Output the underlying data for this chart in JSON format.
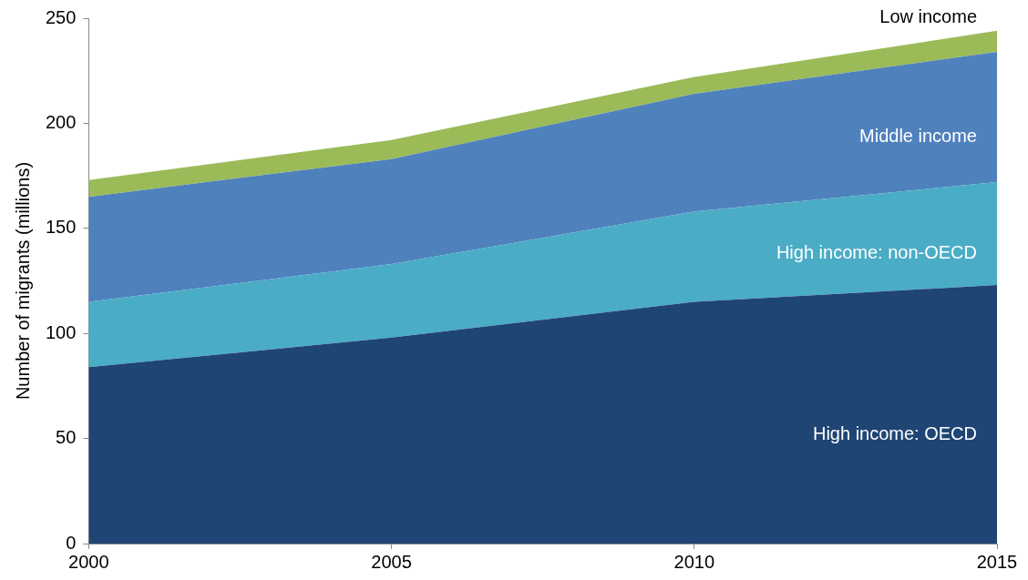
{
  "chart_data": {
    "type": "area",
    "stacked": true,
    "ylabel": "Number of migrants (millions)",
    "x": [
      2000,
      2005,
      2010,
      2015
    ],
    "series": [
      {
        "name": "High income: OECD",
        "color": "#1f4574",
        "values": [
          84,
          98,
          115,
          123
        ]
      },
      {
        "name": "High income: non-OECD",
        "color": "#4bacc6",
        "values": [
          31,
          35,
          43,
          49
        ]
      },
      {
        "name": "Middle income",
        "color": "#4f81bd",
        "values": [
          50,
          50,
          56,
          62
        ]
      },
      {
        "name": "Low income",
        "color": "#9bbb59",
        "values": [
          8,
          9,
          8,
          10
        ]
      }
    ],
    "xlim": [
      2000,
      2015
    ],
    "xticks": [
      2000,
      2005,
      2010,
      2015
    ],
    "ylim": [
      0,
      250
    ],
    "yticks": [
      0,
      50,
      100,
      150,
      200,
      250
    ],
    "grid": false,
    "legend": false
  }
}
